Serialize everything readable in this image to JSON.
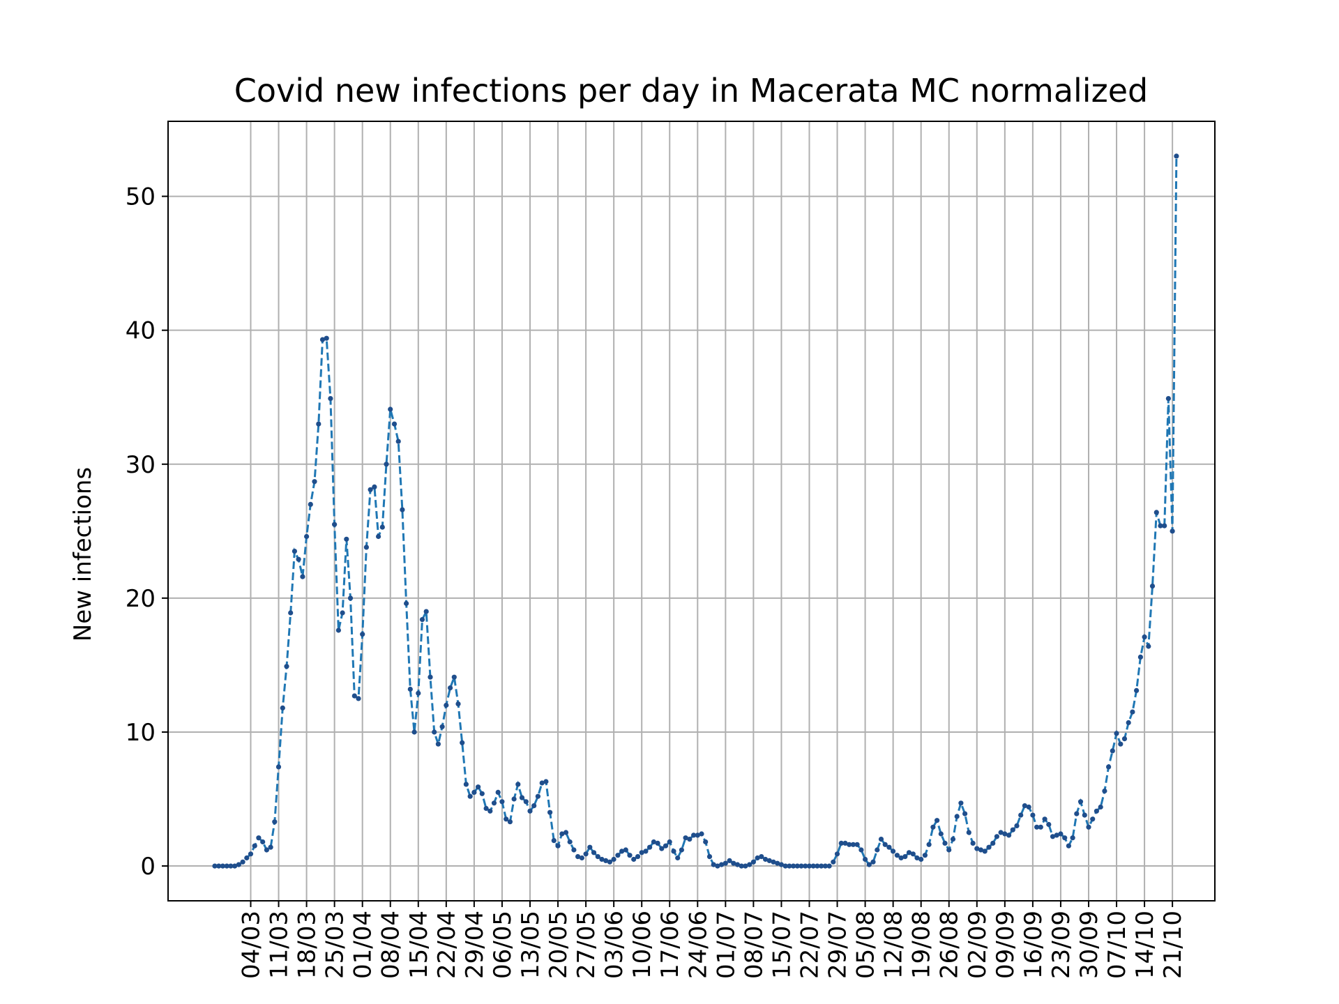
{
  "chart_data": {
    "type": "line",
    "title": "Covid new infections per day in Macerata MC normalized",
    "xlabel": "",
    "ylabel": "New infections",
    "x_ticks": [
      "04/03",
      "11/03",
      "18/03",
      "25/03",
      "01/04",
      "08/04",
      "15/04",
      "22/04",
      "29/04",
      "06/05",
      "13/05",
      "20/05",
      "27/05",
      "03/06",
      "10/06",
      "17/06",
      "24/06",
      "01/07",
      "08/07",
      "15/07",
      "22/07",
      "29/07",
      "05/08",
      "12/08",
      "19/08",
      "26/08",
      "02/09",
      "09/09",
      "16/09",
      "23/09",
      "30/09",
      "07/10",
      "14/10",
      "21/10"
    ],
    "y_ticks": [
      0,
      10,
      20,
      30,
      40,
      50
    ],
    "ylim": [
      -2.6,
      55.6
    ],
    "grid": true,
    "x_start": "2020-02-24",
    "x_end": "2020-10-21",
    "values": [
      0.0,
      0.0,
      0.0,
      0.0,
      0.0,
      0.0,
      0.1,
      0.3,
      0.6,
      0.9,
      1.5,
      2.1,
      1.8,
      1.2,
      1.4,
      3.3,
      7.4,
      11.8,
      14.9,
      18.9,
      23.5,
      22.9,
      21.6,
      24.6,
      27.0,
      28.7,
      33.0,
      39.3,
      39.4,
      34.9,
      25.5,
      17.6,
      18.9,
      24.4,
      20.0,
      12.7,
      12.5,
      17.3,
      23.8,
      28.1,
      28.3,
      24.6,
      25.3,
      30.0,
      34.1,
      33.0,
      31.7,
      26.6,
      19.6,
      13.2,
      10.0,
      12.9,
      18.4,
      19.0,
      14.1,
      10.0,
      9.1,
      10.4,
      12.0,
      13.3,
      14.1,
      12.1,
      9.2,
      6.1,
      5.2,
      5.5,
      5.9,
      5.4,
      4.3,
      4.1,
      4.7,
      5.5,
      4.8,
      3.5,
      3.3,
      5.0,
      6.1,
      5.1,
      4.8,
      4.1,
      4.5,
      5.2,
      6.2,
      6.3,
      4.0,
      1.9,
      1.5,
      2.4,
      2.5,
      1.8,
      1.2,
      0.7,
      0.6,
      0.9,
      1.4,
      1.0,
      0.7,
      0.5,
      0.4,
      0.3,
      0.5,
      0.8,
      1.1,
      1.2,
      0.8,
      0.5,
      0.7,
      1.0,
      1.1,
      1.4,
      1.8,
      1.7,
      1.3,
      1.5,
      1.8,
      1.1,
      0.6,
      1.2,
      2.1,
      2.0,
      2.3,
      2.3,
      2.4,
      1.8,
      0.7,
      0.1,
      0.0,
      0.1,
      0.2,
      0.4,
      0.2,
      0.1,
      0.0,
      0.0,
      0.1,
      0.3,
      0.6,
      0.7,
      0.5,
      0.4,
      0.3,
      0.2,
      0.1,
      0.0,
      0.0,
      0.0,
      0.0,
      0.0,
      0.0,
      0.0,
      0.0,
      0.0,
      0.0,
      0.0,
      0.0,
      0.3,
      0.9,
      1.7,
      1.7,
      1.6,
      1.6,
      1.6,
      1.2,
      0.5,
      0.1,
      0.3,
      1.2,
      2.0,
      1.6,
      1.4,
      1.1,
      0.8,
      0.6,
      0.7,
      1.0,
      0.9,
      0.6,
      0.5,
      0.8,
      1.6,
      2.9,
      3.4,
      2.4,
      1.7,
      1.2,
      2.0,
      3.7,
      4.7,
      3.9,
      2.5,
      1.7,
      1.3,
      1.2,
      1.1,
      1.4,
      1.7,
      2.2,
      2.5,
      2.4,
      2.3,
      2.7,
      3.0,
      3.8,
      4.5,
      4.4,
      3.8,
      2.9,
      2.9,
      3.5,
      3.1,
      2.2,
      2.3,
      2.4,
      2.1,
      1.5,
      2.1,
      3.9,
      4.8,
      3.8,
      2.9,
      3.5,
      4.1,
      4.4,
      5.6,
      7.4,
      8.6,
      9.9,
      9.1,
      9.5,
      10.7,
      11.5,
      13.1,
      15.6,
      17.1,
      16.4,
      20.9,
      26.4,
      25.4,
      25.4,
      34.9,
      25.0,
      53.0
    ]
  }
}
